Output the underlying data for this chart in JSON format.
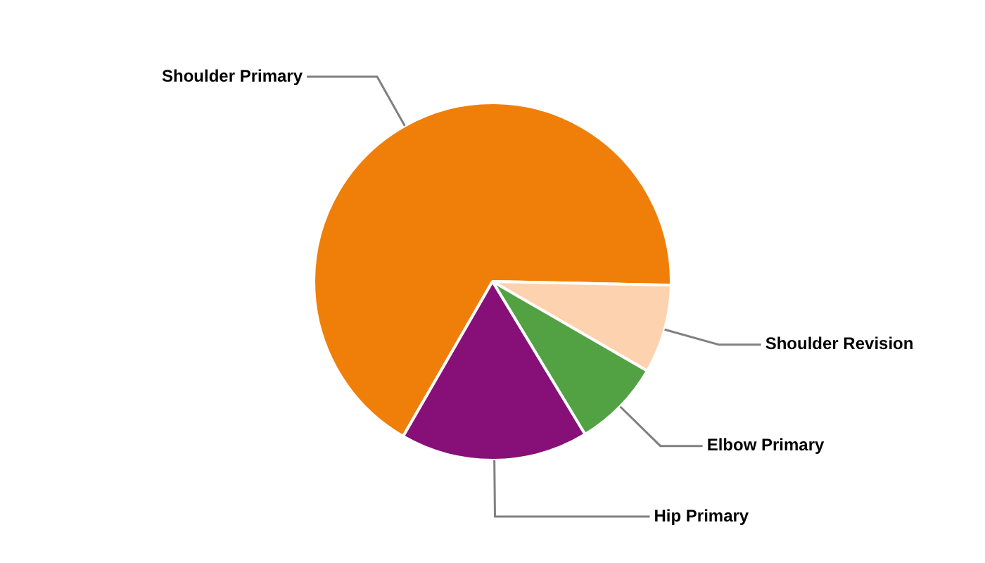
{
  "chart_data": {
    "type": "pie",
    "categories": [
      "Shoulder Primary",
      "Shoulder Revision",
      "Elbow Primary",
      "Hip Primary"
    ],
    "values": [
      67,
      8,
      8,
      17
    ],
    "colors": [
      "#f07f09",
      "#fdd2ae",
      "#52a244",
      "#871078"
    ]
  }
}
